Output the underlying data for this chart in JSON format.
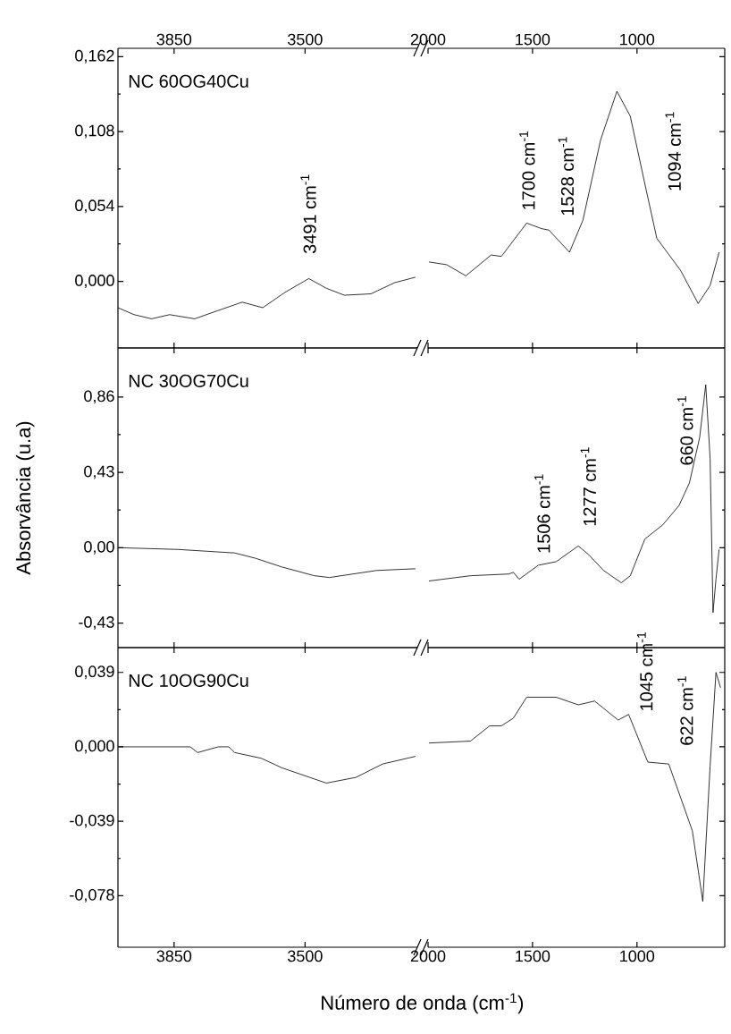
{
  "chart_data": [
    {
      "type": "line",
      "xlim": [
        4000,
        3200
      ],
      "xticks": [
        3850,
        3500
      ],
      "ylim": [
        -0.048,
        0.168
      ],
      "yticks": [
        {
          "value": 0.162,
          "label": "0,162"
        },
        {
          "value": 0.108,
          "label": "0,108"
        },
        {
          "value": 0.054,
          "label": "0,054"
        },
        {
          "value": 0,
          "label": "0,000"
        }
      ],
      "series": [
        {
          "color": "#000000",
          "x": [
            4000,
            3957,
            3910,
            3862,
            3795,
            3732,
            3668,
            3613,
            3554,
            3490,
            3443,
            3395,
            3324,
            3261,
            3205
          ],
          "values": [
            -0.019,
            -0.024,
            -0.027,
            -0.024,
            -0.027,
            -0.021,
            -0.015,
            -0.019,
            -0.008,
            0.002,
            -0.005,
            -0.01,
            -0.009,
            -0.001,
            0.003
          ]
        }
      ],
      "annotations": [
        "NC 60OG40Cu",
        "3491 cm$^{-1}$"
      ]
    },
    {
      "type": "line",
      "xlim": [
        2000,
        580
      ],
      "xticks": [
        2000,
        1500,
        1000
      ],
      "ylim": [
        -0.048,
        0.168
      ],
      "yticks": [
        {
          "value": 0.162,
          "label": null
        },
        {
          "value": 0.108,
          "label": null
        },
        {
          "value": 0.054,
          "label": null
        },
        {
          "value": 0,
          "label": null
        }
      ],
      "tick_labels": "x",
      "series": [
        {
          "color": "#000000",
          "x": [
            1996,
            1911,
            1819,
            1698,
            1649,
            1528,
            1457,
            1422,
            1323,
            1259,
            1174,
            1096,
            1032,
            962,
            905,
            792,
            707,
            650,
            607
          ],
          "values": [
            0.014,
            0.012,
            0.004,
            0.019,
            0.018,
            0.042,
            0.038,
            0.037,
            0.021,
            0.044,
            0.102,
            0.137,
            0.119,
            0.07,
            0.031,
            0.008,
            -0.016,
            -0.003,
            0.021
          ]
        }
      ],
      "annotations": [
        "1700 cm$^{-1}$",
        "1528 cm$^{-1}$",
        "1094 cm$^{-1}$"
      ]
    },
    {
      "type": "line",
      "xlim": [
        4000,
        3200
      ],
      "xticks": [
        3850,
        3500
      ],
      "ylim": [
        -0.57,
        1.14
      ],
      "yticks": [
        {
          "value": 0.86,
          "label": "0,86"
        },
        {
          "value": 0.43,
          "label": "0,43"
        },
        {
          "value": 0,
          "label": "0,00"
        },
        {
          "value": -0.43,
          "label": "-0,43"
        }
      ],
      "tick_labels": "y",
      "ylabel": "Absorvância (u.a)",
      "series": [
        {
          "color": "#000000",
          "x": [
            3998,
            3839,
            3688,
            3633,
            3562,
            3475,
            3435,
            3309,
            3205
          ],
          "values": [
            0.0,
            -0.01,
            -0.03,
            -0.06,
            -0.11,
            -0.16,
            -0.17,
            -0.13,
            -0.12
          ]
        }
      ],
      "annotations": [
        "NC 30OG70Cu"
      ]
    },
    {
      "type": "line",
      "xlim": [
        2000,
        580
      ],
      "xticks": [
        2000,
        1500,
        1000
      ],
      "ylim": [
        -0.57,
        1.14
      ],
      "yticks": [
        {
          "value": 0.86,
          "label": null
        },
        {
          "value": 0.43,
          "label": null
        },
        {
          "value": 0,
          "label": null
        },
        {
          "value": -0.43,
          "label": null
        }
      ],
      "tick_labels": false,
      "series": [
        {
          "color": "#000000",
          "x": [
            1996,
            1797,
            1613,
            1592,
            1564,
            1472,
            1387,
            1281,
            1231,
            1160,
            1075,
            1032,
            962,
            877,
            799,
            749,
            700,
            671,
            650,
            636,
            622,
            607
          ],
          "values": [
            -0.19,
            -0.16,
            -0.15,
            -0.14,
            -0.18,
            -0.1,
            -0.08,
            0.01,
            -0.04,
            -0.13,
            -0.2,
            -0.16,
            0.05,
            0.13,
            0.24,
            0.37,
            0.63,
            0.93,
            0.51,
            -0.37,
            -0.18,
            -0.01
          ]
        }
      ],
      "annotations": [
        "1506 cm$^{-1}$",
        "1277 cm$^{-1}$",
        "660 cm$^{-1}$"
      ]
    },
    {
      "type": "line",
      "xlim": [
        4000,
        3200
      ],
      "xticks": [
        3850,
        3500
      ],
      "ylim": [
        -0.105,
        0.052
      ],
      "yticks": [
        {
          "value": 0.039,
          "label": "0,039"
        },
        {
          "value": 0,
          "label": "0,000"
        },
        {
          "value": -0.039,
          "label": "-0,039"
        },
        {
          "value": -0.078,
          "label": "-0,078"
        }
      ],
      "series": [
        {
          "color": "#000000",
          "x": [
            3997,
            3807,
            3787,
            3732,
            3704,
            3688,
            3617,
            3562,
            3443,
            3364,
            3293,
            3205
          ],
          "values": [
            0.0,
            0.0,
            -0.003,
            0.0,
            0.0,
            -0.003,
            -0.006,
            -0.011,
            -0.019,
            -0.016,
            -0.009,
            -0.005
          ]
        }
      ],
      "annotations": [
        "NC 10OG90Cu"
      ]
    },
    {
      "type": "line",
      "xlim": [
        2000,
        580
      ],
      "xticks": [
        2000,
        1500,
        1000
      ],
      "ylim": [
        -0.105,
        0.052
      ],
      "yticks": [
        {
          "value": 0.039,
          "label": null
        },
        {
          "value": 0,
          "label": null
        },
        {
          "value": -0.039,
          "label": null
        },
        {
          "value": -0.078,
          "label": null
        }
      ],
      "tick_labels": "x",
      "xlabel": "Número de onda (cm$^{-1}$)",
      "series": [
        {
          "color": "#000000",
          "x": [
            1996,
            1797,
            1705,
            1649,
            1592,
            1528,
            1387,
            1281,
            1203,
            1090,
            1040,
            948,
            848,
            735,
            685,
            650,
            622,
            600
          ],
          "values": [
            0.002,
            0.003,
            0.011,
            0.011,
            0.015,
            0.026,
            0.026,
            0.022,
            0.024,
            0.014,
            0.017,
            -0.008,
            -0.009,
            -0.044,
            -0.081,
            -0.01,
            0.039,
            0.031
          ]
        }
      ],
      "annotations": [
        "1045 cm$^{-1}$",
        "622 cm$^{-1}$"
      ]
    }
  ]
}
